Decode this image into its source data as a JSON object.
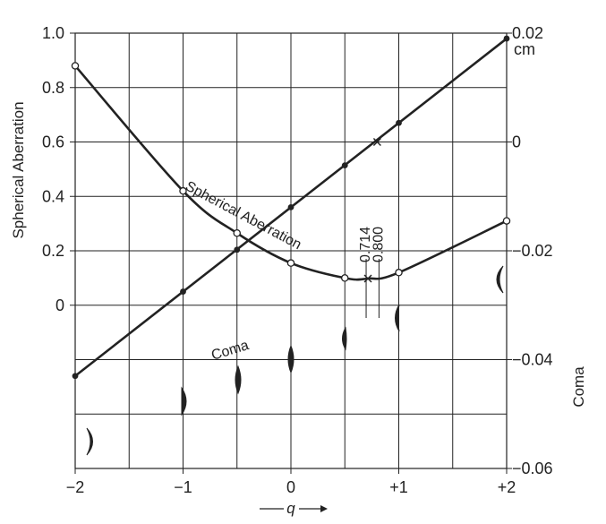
{
  "chart_data": {
    "type": "line",
    "x_axis": {
      "label": "q",
      "range": [
        -2,
        2
      ],
      "ticks": [
        -2,
        -1,
        0,
        1,
        2
      ],
      "tick_labels": [
        "−2",
        "−1",
        "0",
        "+1",
        "+2"
      ],
      "grid_step": 0.5
    },
    "y_left": {
      "label": "Spherical Aberration",
      "range": [
        -0.6,
        1.0
      ],
      "ticks": [
        0,
        0.2,
        0.4,
        0.6,
        0.8,
        1.0
      ],
      "tick_labels": [
        "0",
        "0.2",
        "0.4",
        "0.6",
        "0.8",
        "1.0"
      ]
    },
    "y_right": {
      "label": "Coma",
      "range": [
        -0.06,
        0.02
      ],
      "ticks": [
        0.02,
        0,
        -0.02,
        -0.04,
        -0.06
      ],
      "tick_labels": [
        "0.02",
        "0",
        "−0.02",
        "−0.04",
        "−0.06"
      ],
      "unit": "cm"
    },
    "grid": true,
    "series": [
      {
        "name": "Spherical Aberration",
        "axis": "left",
        "marker": "open-circle",
        "x": [
          -2,
          -1,
          -0.5,
          0,
          0.5,
          1,
          2
        ],
        "y": [
          0.88,
          0.42,
          0.265,
          0.155,
          0.1,
          0.12,
          0.31
        ],
        "minimum": {
          "x": 0.714,
          "y": 0.098
        }
      },
      {
        "name": "Coma",
        "axis": "right",
        "marker": "filled-circle",
        "x": [
          -2,
          -1,
          -0.5,
          0,
          0.5,
          1,
          2
        ],
        "y": [
          -0.043,
          -0.0275,
          -0.0198,
          -0.012,
          -0.0043,
          0.0035,
          0.019
        ],
        "zero_crossing": {
          "x": 0.8,
          "y": 0
        }
      }
    ],
    "annotations": [
      {
        "text": "0.714",
        "x": 0.714,
        "axis": "left",
        "y": 0.098,
        "mark": "×"
      },
      {
        "text": "0.800",
        "x": 0.8,
        "axis": "right",
        "y": 0,
        "mark": "×"
      }
    ],
    "lens_shapes": [
      -2,
      -1,
      -0.5,
      0,
      0.5,
      1,
      2
    ]
  }
}
